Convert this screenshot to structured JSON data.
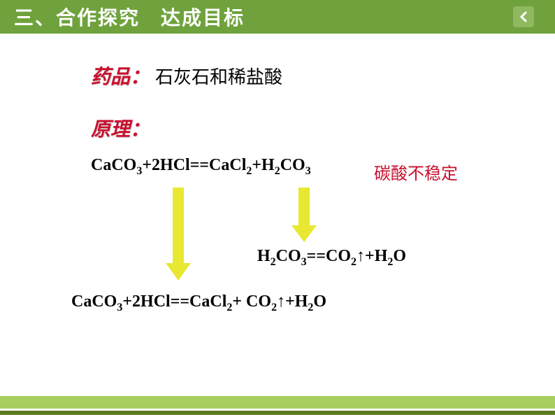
{
  "header": {
    "title": "三、合作探究　达成目标"
  },
  "content": {
    "materials_label": "药品：",
    "materials_text": "石灰石和稀盐酸",
    "principle_label": "原理：",
    "equation1_html": "CaCO<sub>3</sub>+2HCl==CaCl<sub>2</sub>+H<sub>2</sub>CO<sub>3</sub>",
    "note": "碳酸不稳定",
    "equation2_html": "H<sub>2</sub>CO<sub>3</sub>==CO<sub>2</sub>↑+H<sub>2</sub>O",
    "equation3_html": "CaCO<sub>3</sub>+2HCl==CaCl<sub>2</sub>+ CO<sub>2</sub>↑+H<sub>2</sub>O"
  },
  "styles": {
    "arrow_color": "#e8e833",
    "arrow_width": 30,
    "arrow1_height": 130,
    "arrow2_height": 75,
    "header_bg": "#6fa23c",
    "red_color": "#c8102e"
  }
}
